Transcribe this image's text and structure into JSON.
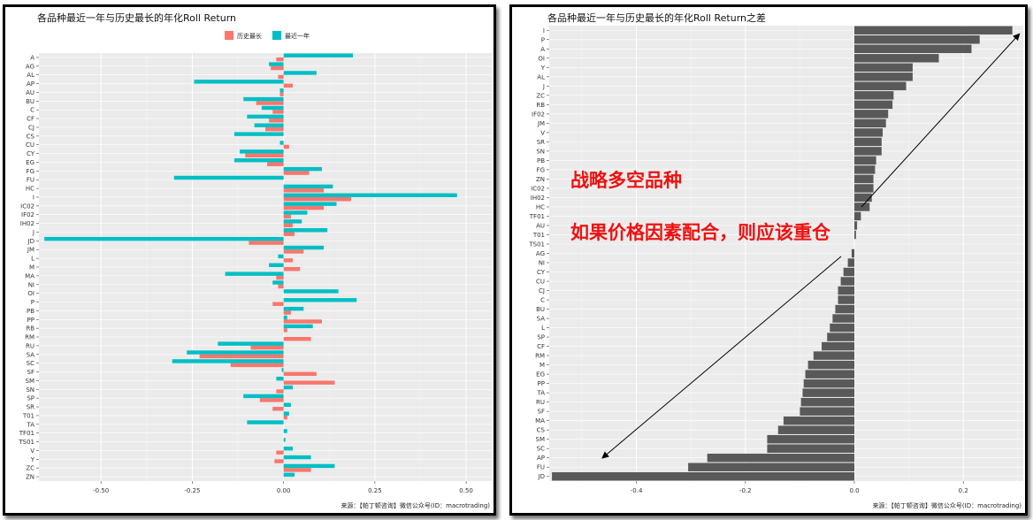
{
  "chart_data": [
    {
      "type": "bar",
      "orientation": "horizontal",
      "title": "各品种最近一年与历史最长的年化Roll Return",
      "legend": [
        "历史最长",
        "最近一年"
      ],
      "legend_position": "top",
      "colors": [
        "#f8766d",
        "#00bfc4"
      ],
      "source": "来源：【帕丁顿咨询】微信公众号(ID：macrotrading)",
      "xlim": [
        -0.67,
        0.57
      ],
      "xticks": [
        -0.5,
        -0.25,
        0.0,
        0.25,
        0.5
      ],
      "xtick_labels": [
        "-0.50",
        "-0.25",
        "0.00",
        "0.25",
        "0.50"
      ],
      "categories": [
        "ZN",
        "ZC",
        "Y",
        "V",
        "TS01",
        "TF01",
        "TA",
        "T01",
        "SR",
        "SP",
        "SN",
        "SM",
        "SF",
        "SC",
        "SA",
        "RU",
        "RM",
        "RB",
        "PP",
        "PB",
        "P",
        "OI",
        "NI",
        "MA",
        "M",
        "L",
        "JM",
        "JD",
        "J",
        "IH02",
        "IF02",
        "IC02",
        "I",
        "HC",
        "FU",
        "FG",
        "EG",
        "CY",
        "CU",
        "CS",
        "CJ",
        "CF",
        "C",
        "BU",
        "AU",
        "AP",
        "AL",
        "AG",
        "A"
      ],
      "series": [
        {
          "name": "历史最长",
          "values": [
            0.0,
            0.075,
            -0.025,
            -0.02,
            0.0,
            0.0,
            0.0,
            0.01,
            -0.03,
            -0.065,
            -0.02,
            0.14,
            0.09,
            -0.145,
            -0.23,
            -0.09,
            0.075,
            0.01,
            0.105,
            0.02,
            -0.03,
            0.0,
            -0.015,
            -0.02,
            0.045,
            0.025,
            0.055,
            -0.095,
            0.03,
            0.025,
            0.02,
            0.11,
            0.185,
            0.11,
            0.0,
            0.07,
            -0.045,
            -0.105,
            0.015,
            0.0,
            -0.05,
            -0.04,
            -0.03,
            -0.075,
            -0.01,
            0.025,
            -0.015,
            -0.035,
            -0.02
          ]
        },
        {
          "name": "最近一年",
          "values": [
            0.03,
            0.14,
            0.075,
            0.025,
            0.005,
            0.01,
            -0.1,
            0.015,
            0.02,
            -0.11,
            0.025,
            -0.02,
            -0.005,
            -0.305,
            -0.265,
            -0.18,
            0.0,
            0.08,
            0.01,
            0.055,
            0.2,
            0.15,
            -0.03,
            -0.16,
            -0.04,
            -0.015,
            0.11,
            -0.655,
            0.12,
            0.05,
            0.065,
            0.145,
            0.475,
            0.135,
            -0.3,
            0.105,
            -0.135,
            -0.12,
            -0.01,
            -0.135,
            -0.08,
            -0.1,
            -0.06,
            -0.11,
            -0.01,
            -0.245,
            0.09,
            -0.04,
            0.19
          ]
        }
      ]
    },
    {
      "type": "bar",
      "orientation": "horizontal",
      "title": "各品种最近一年与历史最长的年化Roll Return之差",
      "source": "来源：【帕丁顿咨询】微信公众号(ID：macrotrading)",
      "color": "#595959",
      "xlim": [
        -0.56,
        0.31
      ],
      "xticks": [
        -0.4,
        -0.2,
        0.0,
        0.2
      ],
      "xtick_labels": [
        "-0.4",
        "-0.2",
        "0.0",
        "0.2"
      ],
      "categories": [
        "I",
        "P",
        "A",
        "OI",
        "Y",
        "AL",
        "J",
        "ZC",
        "RB",
        "IF02",
        "JM",
        "V",
        "SR",
        "SN",
        "PB",
        "FG",
        "ZN",
        "IC02",
        "IH02",
        "HC",
        "TF01",
        "AU",
        "T01",
        "TS01",
        "AG",
        "NI",
        "CY",
        "CU",
        "CJ",
        "C",
        "BU",
        "SA",
        "L",
        "SP",
        "CF",
        "RM",
        "M",
        "EG",
        "PP",
        "TA",
        "RU",
        "SF",
        "MA",
        "CS",
        "SM",
        "SC",
        "AP",
        "FU",
        "JD"
      ],
      "values": [
        0.29,
        0.23,
        0.215,
        0.155,
        0.107,
        0.107,
        0.095,
        0.072,
        0.07,
        0.062,
        0.058,
        0.052,
        0.05,
        0.05,
        0.04,
        0.038,
        0.035,
        0.035,
        0.032,
        0.028,
        0.012,
        0.005,
        0.003,
        0.0,
        -0.005,
        -0.012,
        -0.02,
        -0.025,
        -0.03,
        -0.03,
        -0.035,
        -0.04,
        -0.045,
        -0.05,
        -0.06,
        -0.075,
        -0.085,
        -0.09,
        -0.093,
        -0.095,
        -0.098,
        -0.1,
        -0.13,
        -0.14,
        -0.16,
        -0.16,
        -0.27,
        -0.305,
        -0.555
      ],
      "annotations": [
        "战略多空品种",
        "如果价格因素配合，则应该重仓"
      ]
    }
  ]
}
